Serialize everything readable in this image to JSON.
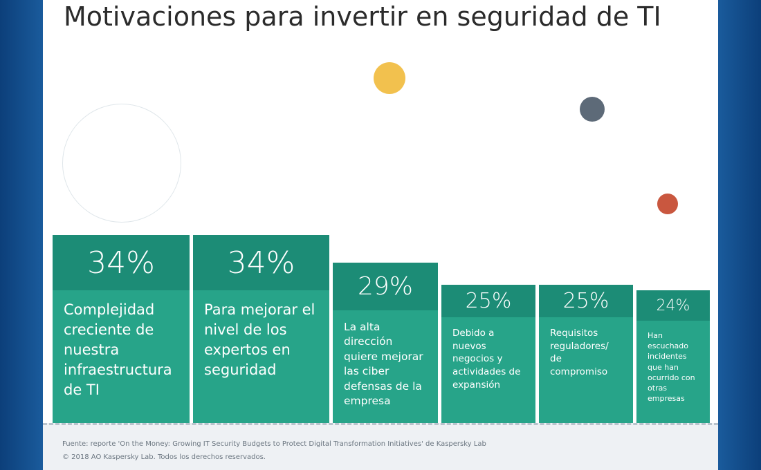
{
  "chart_data": {
    "type": "bar",
    "title": "Motivaciones para invertir en seguridad de TI",
    "categories": [
      "Complejidad creciente de nuestra infraestructura de TI",
      "Para mejorar el nivel de los expertos en seguridad",
      "La alta dirección quiere mejorar las ciber defensas de la empresa",
      "Debido a nuevos negocios y actividades de expansión",
      "Requisitos reguladores/ de compromiso",
      "Han escuchado incidentes que han ocurrido con otras empresas"
    ],
    "values": [
      34,
      34,
      29,
      25,
      25,
      24
    ],
    "value_labels": [
      "34%",
      "34%",
      "29%",
      "25%",
      "25%",
      "24%"
    ],
    "color": "#27a489",
    "notes": [
      "Fuente: reporte 'On the Money: Growing IT Security Budgets to Protect Digital Transformation Initiatives' de Kaspersky Lab",
      "© 2018 AO Kaspersky Lab. Todos los derechos reservados."
    ]
  }
}
